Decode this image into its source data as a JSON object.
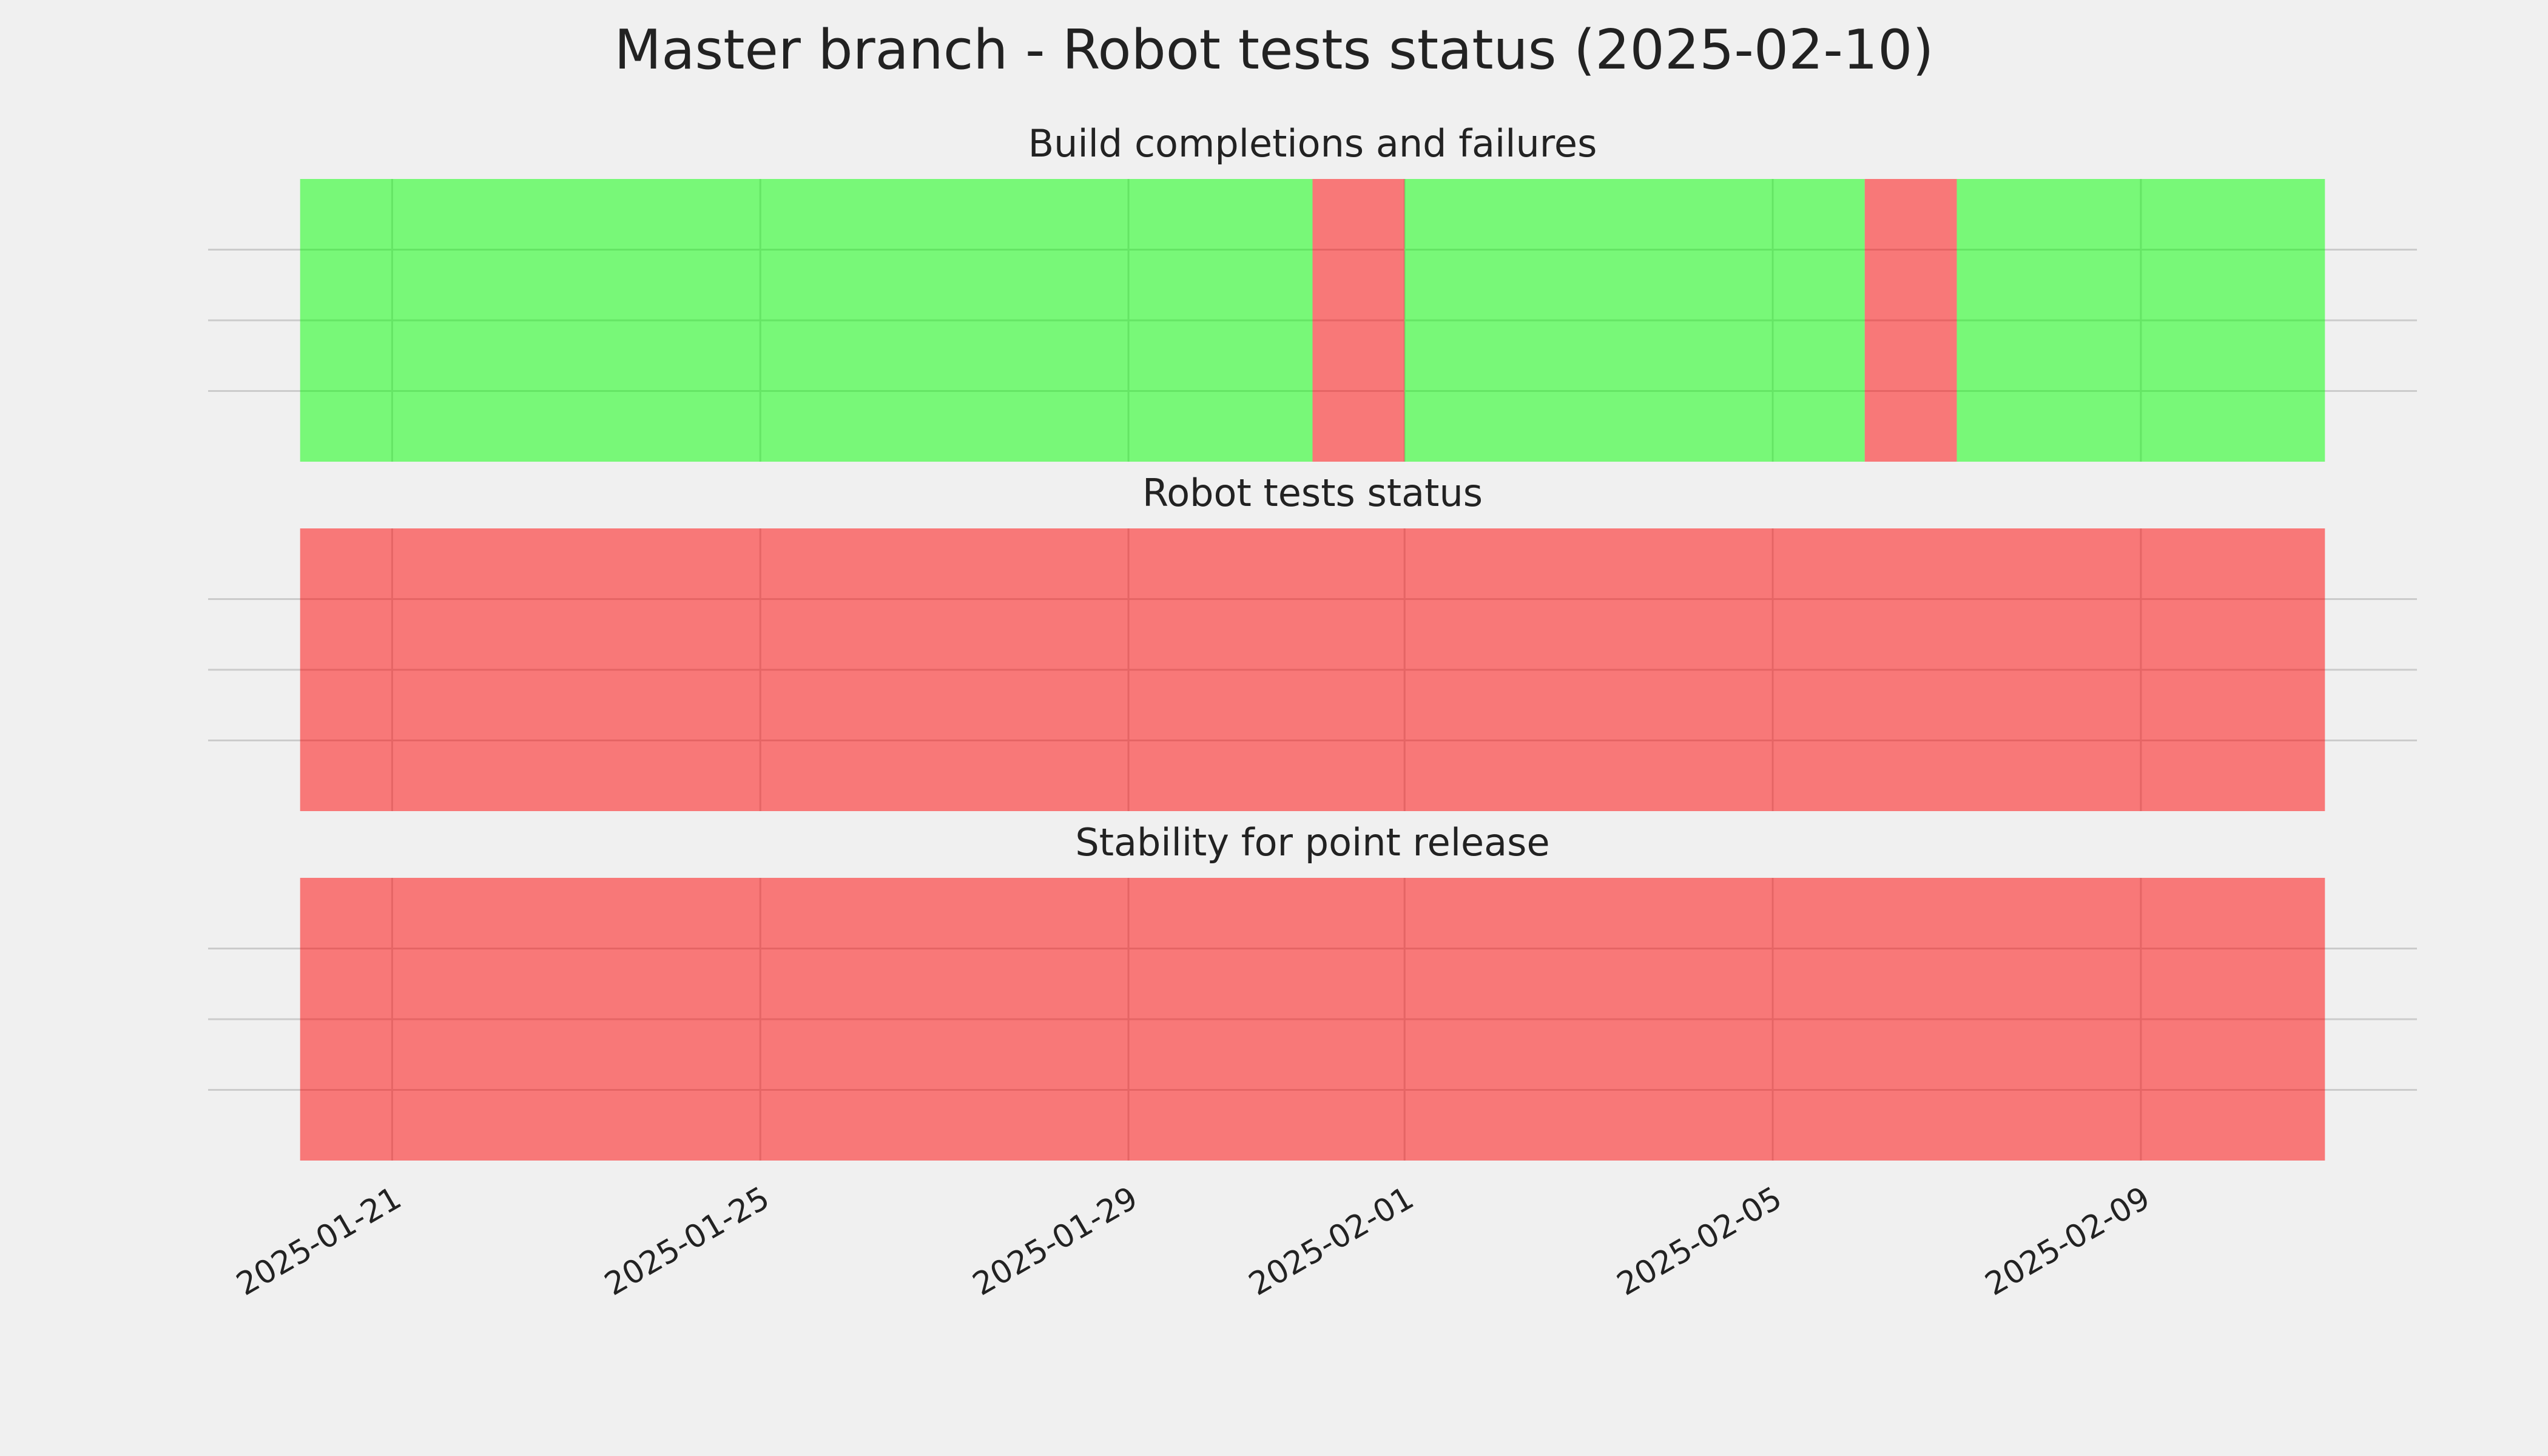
{
  "title": "Master branch - Robot tests status (2025-02-10)",
  "chart_data": [
    {
      "type": "timeline",
      "title": "Build completions and failures",
      "spans": [
        {
          "start": "2025-01-20",
          "end": "2025-01-31",
          "color": "#00ff00"
        },
        {
          "start": "2025-01-31",
          "end": "2025-02-01",
          "color": "#ff0000"
        },
        {
          "start": "2025-02-01",
          "end": "2025-02-06",
          "color": "#00ff00"
        },
        {
          "start": "2025-02-06",
          "end": "2025-02-07",
          "color": "#ff0000"
        },
        {
          "start": "2025-02-07",
          "end": "2025-02-11",
          "color": "#00ff00"
        }
      ],
      "xlim": [
        "2025-01-19",
        "2025-02-12"
      ],
      "xticks": [
        "2025-01-21",
        "2025-01-25",
        "2025-01-29",
        "2025-02-01",
        "2025-02-05",
        "2025-02-09"
      ],
      "ylim": [
        0,
        1
      ],
      "yticks": [
        0.25,
        0.5,
        0.75
      ],
      "grid": true
    },
    {
      "type": "timeline",
      "title": "Robot tests status",
      "spans": [
        {
          "start": "2025-01-20",
          "end": "2025-02-11",
          "color": "#ff0000"
        }
      ],
      "xlim": [
        "2025-01-19",
        "2025-02-12"
      ],
      "xticks": [
        "2025-01-21",
        "2025-01-25",
        "2025-01-29",
        "2025-02-01",
        "2025-02-05",
        "2025-02-09"
      ],
      "ylim": [
        0,
        1
      ],
      "yticks": [
        0.25,
        0.5,
        0.75
      ],
      "grid": true
    },
    {
      "type": "timeline",
      "title": "Stability for point release",
      "spans": [
        {
          "start": "2025-01-20",
          "end": "2025-02-11",
          "color": "#ff0000"
        }
      ],
      "xlim": [
        "2025-01-19",
        "2025-02-12"
      ],
      "xticks": [
        "2025-01-21",
        "2025-01-25",
        "2025-01-29",
        "2025-02-01",
        "2025-02-05",
        "2025-02-09"
      ],
      "ylim": [
        0,
        1
      ],
      "yticks": [
        0.25,
        0.5,
        0.75
      ],
      "grid": true,
      "show_xtick_labels": true
    }
  ]
}
